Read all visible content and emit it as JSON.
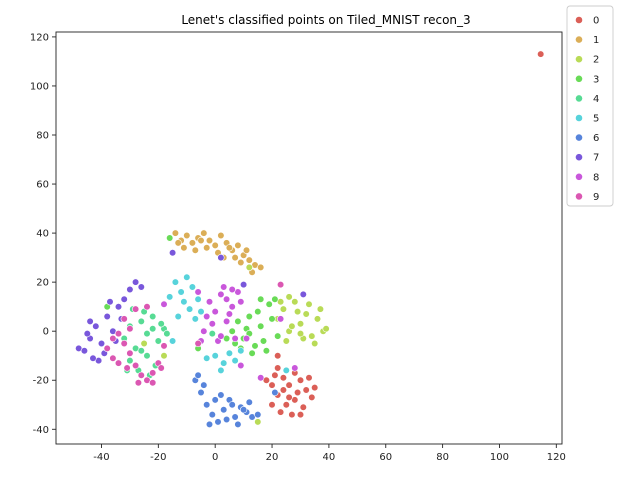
{
  "chart_data": {
    "type": "scatter",
    "title": "Lenet's classified points on Tiled_MNIST recon_3",
    "xlabel": "",
    "ylabel": "",
    "xlim": [
      -56,
      122
    ],
    "ylim": [
      -46,
      122
    ],
    "xticks": [
      -40,
      -20,
      0,
      20,
      40,
      60,
      80,
      100,
      120
    ],
    "yticks": [
      -40,
      -20,
      0,
      20,
      40,
      60,
      80,
      100,
      120
    ],
    "grid": false,
    "legend_position": "outside-upper-right",
    "series": [
      {
        "name": "0",
        "color": "#db5f57",
        "points": [
          [
            114.5,
            113
          ],
          [
            22,
            -15
          ],
          [
            24,
            -19
          ],
          [
            26,
            -22
          ],
          [
            28,
            -17
          ],
          [
            30,
            -20
          ],
          [
            32,
            -24
          ],
          [
            20,
            -22
          ],
          [
            22,
            -26
          ],
          [
            25,
            -30
          ],
          [
            28,
            -28
          ],
          [
            31,
            -31
          ],
          [
            34,
            -27
          ],
          [
            23,
            -33
          ],
          [
            27,
            -34
          ],
          [
            18,
            -20
          ],
          [
            20,
            -30
          ],
          [
            29,
            -25
          ],
          [
            33,
            -19
          ],
          [
            24,
            -24
          ],
          [
            26,
            -27
          ],
          [
            21,
            -18
          ],
          [
            30,
            -34
          ],
          [
            35,
            -23
          ],
          [
            -10,
            22
          ],
          [
            22,
            -10
          ]
        ]
      },
      {
        "name": "1",
        "color": "#dbae57",
        "points": [
          [
            -16,
            38
          ],
          [
            -14,
            40
          ],
          [
            -12,
            37
          ],
          [
            -10,
            39
          ],
          [
            -8,
            36
          ],
          [
            -6,
            38
          ],
          [
            -4,
            40
          ],
          [
            -2,
            37
          ],
          [
            0,
            35
          ],
          [
            2,
            39
          ],
          [
            4,
            36
          ],
          [
            6,
            33
          ],
          [
            8,
            35
          ],
          [
            10,
            31
          ],
          [
            12,
            29
          ],
          [
            14,
            27
          ],
          [
            16,
            26
          ],
          [
            -11,
            34
          ],
          [
            -7,
            33
          ],
          [
            -3,
            34
          ],
          [
            1,
            32
          ],
          [
            3,
            30
          ],
          [
            5,
            34
          ],
          [
            9,
            28
          ],
          [
            11,
            33
          ],
          [
            -5,
            37
          ],
          [
            -13,
            36
          ],
          [
            13,
            24
          ],
          [
            7,
            30
          ]
        ]
      },
      {
        "name": "2",
        "color": "#b9db57",
        "points": [
          [
            22,
            5
          ],
          [
            24,
            9
          ],
          [
            26,
            0
          ],
          [
            28,
            12
          ],
          [
            30,
            3
          ],
          [
            32,
            7
          ],
          [
            34,
            -2
          ],
          [
            36,
            5
          ],
          [
            38,
            0
          ],
          [
            25,
            -4
          ],
          [
            29,
            8
          ],
          [
            33,
            11
          ],
          [
            35,
            -5
          ],
          [
            27,
            2
          ],
          [
            31,
            -3
          ],
          [
            23,
            12
          ],
          [
            37,
            9
          ],
          [
            39,
            1
          ],
          [
            26,
            14
          ],
          [
            30,
            -1
          ],
          [
            12,
            26
          ],
          [
            15,
            -37
          ],
          [
            -25,
            -5
          ],
          [
            -18,
            -10
          ]
        ]
      },
      {
        "name": "3",
        "color": "#69db57",
        "points": [
          [
            6,
            0
          ],
          [
            8,
            4
          ],
          [
            10,
            -3
          ],
          [
            12,
            6
          ],
          [
            14,
            -6
          ],
          [
            16,
            2
          ],
          [
            18,
            -8
          ],
          [
            20,
            5
          ],
          [
            22,
            -2
          ],
          [
            9,
            -7
          ],
          [
            11,
            1
          ],
          [
            13,
            -9
          ],
          [
            15,
            8
          ],
          [
            17,
            -4
          ],
          [
            19,
            11
          ],
          [
            21,
            13
          ],
          [
            7,
            -5
          ],
          [
            4,
            -3
          ],
          [
            16,
            13
          ],
          [
            12,
            -1
          ],
          [
            -16,
            38
          ],
          [
            -6,
            -7
          ],
          [
            -38,
            10
          ]
        ]
      },
      {
        "name": "4",
        "color": "#57db94",
        "points": [
          [
            -32,
            -3
          ],
          [
            -30,
            2
          ],
          [
            -28,
            -7
          ],
          [
            -26,
            4
          ],
          [
            -24,
            -1
          ],
          [
            -22,
            6
          ],
          [
            -20,
            -4
          ],
          [
            -18,
            1
          ],
          [
            -30,
            -12
          ],
          [
            -27,
            -16
          ],
          [
            -24,
            -10
          ],
          [
            -21,
            -14
          ],
          [
            -19,
            3
          ],
          [
            -25,
            8
          ],
          [
            -29,
            9
          ],
          [
            -23,
            -18
          ],
          [
            -17,
            -1
          ],
          [
            -31,
            -16
          ],
          [
            -26,
            -8
          ],
          [
            -22,
            1
          ],
          [
            -1,
            -1
          ]
        ]
      },
      {
        "name": "5",
        "color": "#57d3db",
        "points": [
          [
            -14,
            20
          ],
          [
            -12,
            16
          ],
          [
            -10,
            22
          ],
          [
            -8,
            18
          ],
          [
            -6,
            13
          ],
          [
            -9,
            9
          ],
          [
            -11,
            12
          ],
          [
            -13,
            6
          ],
          [
            -7,
            5
          ],
          [
            -15,
            -4
          ],
          [
            0,
            -10
          ],
          [
            3,
            -13
          ],
          [
            5,
            -9
          ],
          [
            7,
            -12
          ],
          [
            9,
            -8
          ],
          [
            2,
            -16
          ],
          [
            -3,
            -11
          ],
          [
            25,
            -16
          ],
          [
            -16,
            14
          ],
          [
            -5,
            8
          ]
        ]
      },
      {
        "name": "6",
        "color": "#5784db",
        "points": [
          [
            -7,
            -20
          ],
          [
            -5,
            -25
          ],
          [
            -3,
            -30
          ],
          [
            -1,
            -34
          ],
          [
            1,
            -37
          ],
          [
            3,
            -32
          ],
          [
            5,
            -28
          ],
          [
            7,
            -35
          ],
          [
            9,
            -31
          ],
          [
            11,
            -33
          ],
          [
            13,
            -35
          ],
          [
            15,
            -34
          ],
          [
            -4,
            -22
          ],
          [
            -6,
            -18
          ],
          [
            0,
            -28
          ],
          [
            2,
            -26
          ],
          [
            4,
            -36
          ],
          [
            6,
            -30
          ],
          [
            8,
            -38
          ],
          [
            10,
            -32
          ],
          [
            -2,
            -38
          ],
          [
            12,
            -29
          ],
          [
            21,
            -25
          ]
        ]
      },
      {
        "name": "7",
        "color": "#7957db",
        "points": [
          [
            -48,
            -7
          ],
          [
            -46,
            -8
          ],
          [
            -44,
            -3
          ],
          [
            -42,
            2
          ],
          [
            -40,
            -5
          ],
          [
            -38,
            6
          ],
          [
            -36,
            0
          ],
          [
            -34,
            10
          ],
          [
            -32,
            13
          ],
          [
            -30,
            17
          ],
          [
            -28,
            20
          ],
          [
            -26,
            18
          ],
          [
            -44,
            4
          ],
          [
            -39,
            -9
          ],
          [
            -41,
            -12
          ],
          [
            -35,
            -4
          ],
          [
            -37,
            12
          ],
          [
            -43,
            -11
          ],
          [
            -33,
            5
          ],
          [
            -45,
            -1
          ],
          [
            -15,
            32
          ],
          [
            2,
            30
          ],
          [
            10,
            19
          ],
          [
            31,
            15
          ]
        ]
      },
      {
        "name": "8",
        "color": "#c957db",
        "points": [
          [
            -2,
            12
          ],
          [
            0,
            8
          ],
          [
            2,
            15
          ],
          [
            4,
            4
          ],
          [
            6,
            10
          ],
          [
            8,
            16
          ],
          [
            -4,
            0
          ],
          [
            -1,
            3
          ],
          [
            1,
            -4
          ],
          [
            3,
            18
          ],
          [
            5,
            7
          ],
          [
            7,
            -3
          ],
          [
            9,
            12
          ],
          [
            -3,
            6
          ],
          [
            -6,
            16
          ],
          [
            -5,
            -4
          ],
          [
            2,
            -2
          ],
          [
            4,
            13
          ],
          [
            6,
            17
          ],
          [
            28,
            -15
          ],
          [
            23,
            5
          ],
          [
            11,
            -3
          ],
          [
            -18,
            11
          ],
          [
            16,
            -19
          ],
          [
            9,
            -14
          ]
        ]
      },
      {
        "name": "9",
        "color": "#db57b2",
        "points": [
          [
            -38,
            -7
          ],
          [
            -36,
            -11
          ],
          [
            -34,
            -13
          ],
          [
            -32,
            -5
          ],
          [
            -30,
            -9
          ],
          [
            -28,
            -14
          ],
          [
            -26,
            -18
          ],
          [
            -24,
            -20
          ],
          [
            -22,
            -17
          ],
          [
            -20,
            -13
          ],
          [
            -18,
            -6
          ],
          [
            -36,
            -3
          ],
          [
            -32,
            5
          ],
          [
            -28,
            9
          ],
          [
            -24,
            10
          ],
          [
            -30,
            1
          ],
          [
            -34,
            -1
          ],
          [
            -27,
            -21
          ],
          [
            -22,
            -21
          ],
          [
            -19,
            -15
          ],
          [
            -31,
            -15
          ],
          [
            23,
            19
          ],
          [
            -6,
            -5
          ]
        ]
      }
    ]
  }
}
